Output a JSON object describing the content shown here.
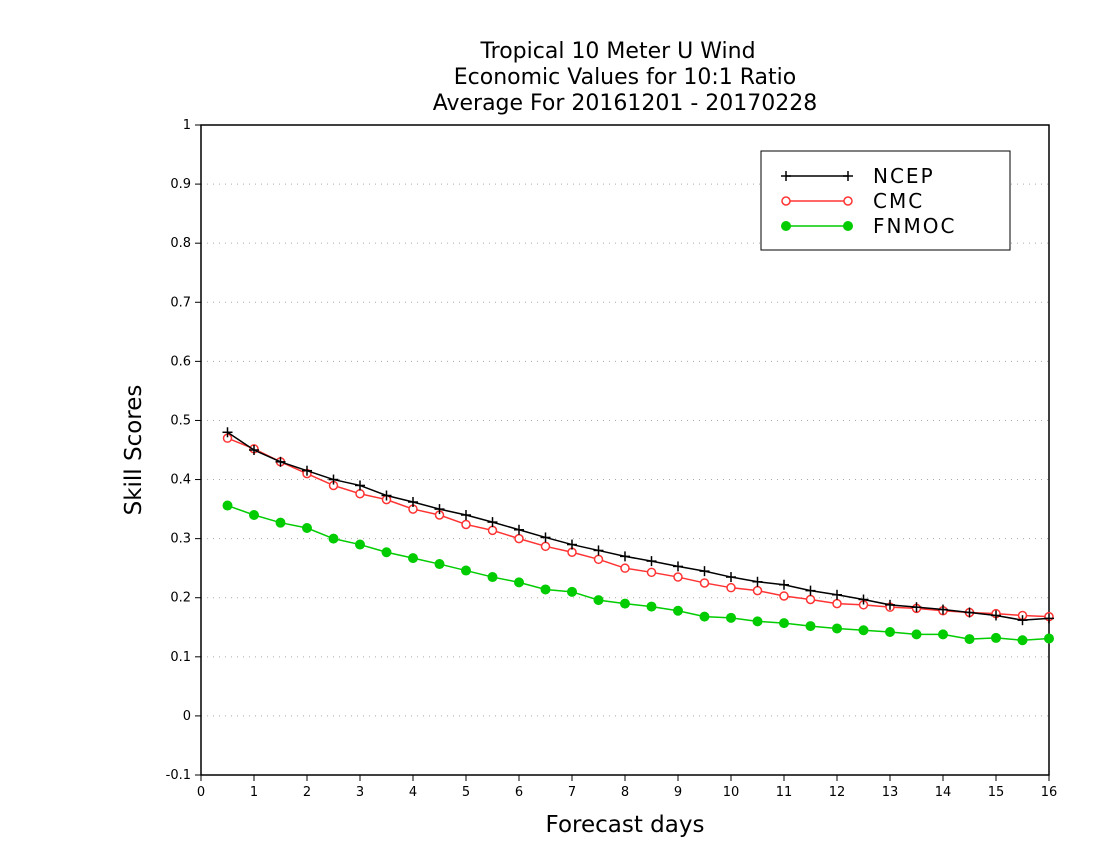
{
  "chart_data": {
    "type": "line",
    "title": [
      "Tropical 10 Meter U Wind",
      "Economic Values for 10:1 Ratio",
      "Average For 20161201 - 20170228"
    ],
    "xlabel": "Forecast days",
    "ylabel": "Skill Scores",
    "xlim": [
      0,
      16
    ],
    "ylim": [
      -0.1,
      1
    ],
    "xticks": [
      "0",
      "1",
      "2",
      "3",
      "4",
      "5",
      "6",
      "7",
      "8",
      "9",
      "10",
      "11",
      "12",
      "13",
      "14",
      "15",
      "16"
    ],
    "yticks": [
      "-0.1",
      "0",
      "0.1",
      "0.2",
      "0.3",
      "0.4",
      "0.5",
      "0.6",
      "0.7",
      "0.8",
      "0.9",
      "1"
    ],
    "grid": "horizontal dotted",
    "legend_position": "top-right",
    "x": [
      0.5,
      1,
      1.5,
      2,
      2.5,
      3,
      3.5,
      4,
      4.5,
      5,
      5.5,
      6,
      6.5,
      7,
      7.5,
      8,
      8.5,
      9,
      9.5,
      10,
      10.5,
      11,
      11.5,
      12,
      12.5,
      13,
      13.5,
      14,
      14.5,
      15,
      15.5,
      16
    ],
    "series": [
      {
        "name": "NCEP",
        "color": "#000000",
        "marker": "plus",
        "values": [
          0.48,
          0.45,
          0.43,
          0.415,
          0.4,
          0.39,
          0.373,
          0.362,
          0.35,
          0.34,
          0.328,
          0.315,
          0.302,
          0.29,
          0.28,
          0.27,
          0.262,
          0.253,
          0.245,
          0.235,
          0.227,
          0.222,
          0.212,
          0.205,
          0.197,
          0.188,
          0.184,
          0.18,
          0.175,
          0.17,
          0.162,
          0.165
        ]
      },
      {
        "name": "CMC",
        "color": "#ff3333",
        "marker": "open-circle",
        "values": [
          0.47,
          0.452,
          0.43,
          0.41,
          0.39,
          0.376,
          0.366,
          0.35,
          0.34,
          0.324,
          0.314,
          0.3,
          0.287,
          0.277,
          0.265,
          0.25,
          0.243,
          0.235,
          0.225,
          0.217,
          0.212,
          0.203,
          0.197,
          0.19,
          0.188,
          0.184,
          0.182,
          0.178,
          0.175,
          0.173,
          0.17,
          0.168
        ]
      },
      {
        "name": "FNMOC",
        "color": "#00cc00",
        "marker": "filled-circle",
        "values": [
          0.356,
          0.34,
          0.327,
          0.318,
          0.3,
          0.29,
          0.277,
          0.267,
          0.257,
          0.246,
          0.235,
          0.226,
          0.214,
          0.21,
          0.196,
          0.19,
          0.185,
          0.178,
          0.168,
          0.166,
          0.16,
          0.157,
          0.152,
          0.148,
          0.145,
          0.142,
          0.138,
          0.138,
          0.13,
          0.132,
          0.128,
          0.131
        ]
      }
    ]
  }
}
